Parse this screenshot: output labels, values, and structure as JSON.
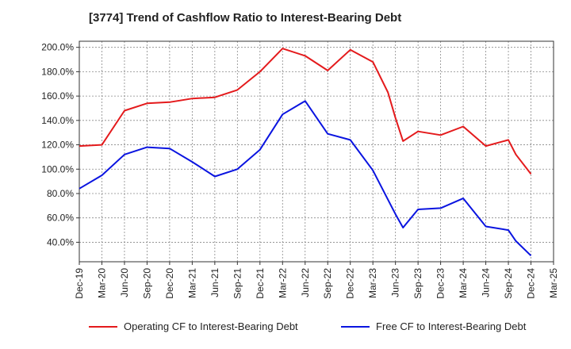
{
  "title": "[3774]  Trend of Cashflow Ratio to Interest-Bearing Debt",
  "chart_data": {
    "type": "line",
    "x": [
      "Dec-19",
      "Mar-20",
      "Jun-20",
      "Sep-20",
      "Dec-20",
      "Mar-21",
      "Jun-21",
      "Sep-21",
      "Dec-21",
      "Mar-22",
      "Jun-22",
      "Sep-22",
      "Dec-22",
      "Mar-23",
      "Jun-23",
      "Sep-23",
      "Dec-23",
      "Mar-24",
      "Jun-24",
      "Sep-24",
      "Dec-24",
      "Mar-25"
    ],
    "y_ticks": [
      "40.0%",
      "60.0%",
      "80.0%",
      "100.0%",
      "120.0%",
      "140.0%",
      "160.0%",
      "180.0%",
      "200.0%"
    ],
    "ylim": [
      24,
      205
    ],
    "grid": true,
    "legend_position": "bottom",
    "series": [
      {
        "name": "Operating CF to Interest-Bearing Debt",
        "color": "#e41a1c",
        "points": [
          [
            "Dec-19",
            119.0
          ],
          [
            "Mar-20",
            120.0
          ],
          [
            "Jun-20",
            148.0
          ],
          [
            "Sep-20",
            154.0
          ],
          [
            "Dec-20",
            155.0
          ],
          [
            "Mar-21",
            158.0
          ],
          [
            "Jun-21",
            159.0
          ],
          [
            "Sep-21",
            165.0
          ],
          [
            "Dec-21",
            180.0
          ],
          [
            "Mar-22",
            199.0
          ],
          [
            "Jun-22",
            193.0
          ],
          [
            "Sep-22",
            181.0
          ],
          [
            "Dec-22",
            198.0
          ],
          [
            "Mar-23",
            188.0
          ],
          [
            "May-23",
            163.0
          ],
          [
            "Jun-23",
            142.0
          ],
          [
            "Jul-23",
            123.0
          ],
          [
            "Sep-23",
            131.0
          ],
          [
            "Dec-23",
            128.0
          ],
          [
            "Mar-24",
            135.0
          ],
          [
            "Jun-24",
            119.0
          ],
          [
            "Sep-24",
            124.0
          ],
          [
            "Oct-24",
            112.0
          ],
          [
            "Dec-24",
            96.0
          ]
        ]
      },
      {
        "name": "Free CF to Interest-Bearing Debt",
        "color": "#0a14e0",
        "points": [
          [
            "Dec-19",
            84.0
          ],
          [
            "Mar-20",
            95.0
          ],
          [
            "Jun-20",
            112.0
          ],
          [
            "Sep-20",
            118.0
          ],
          [
            "Dec-20",
            117.0
          ],
          [
            "Mar-21",
            106.0
          ],
          [
            "Jun-21",
            94.0
          ],
          [
            "Sep-21",
            100.0
          ],
          [
            "Dec-21",
            116.0
          ],
          [
            "Mar-22",
            145.0
          ],
          [
            "Jun-22",
            156.0
          ],
          [
            "Sep-22",
            129.0
          ],
          [
            "Dec-22",
            124.0
          ],
          [
            "Mar-23",
            99.0
          ],
          [
            "May-23",
            75.0
          ],
          [
            "Jun-23",
            63.0
          ],
          [
            "Jul-23",
            52.0
          ],
          [
            "Sep-23",
            67.0
          ],
          [
            "Dec-23",
            68.0
          ],
          [
            "Mar-24",
            76.0
          ],
          [
            "Jun-24",
            53.0
          ],
          [
            "Sep-24",
            50.0
          ],
          [
            "Oct-24",
            41.0
          ],
          [
            "Dec-24",
            29.0
          ]
        ]
      }
    ]
  },
  "legend": [
    {
      "label": "Operating CF to Interest-Bearing Debt",
      "color": "#e41a1c"
    },
    {
      "label": "Free CF to Interest-Bearing Debt",
      "color": "#0a14e0"
    }
  ]
}
